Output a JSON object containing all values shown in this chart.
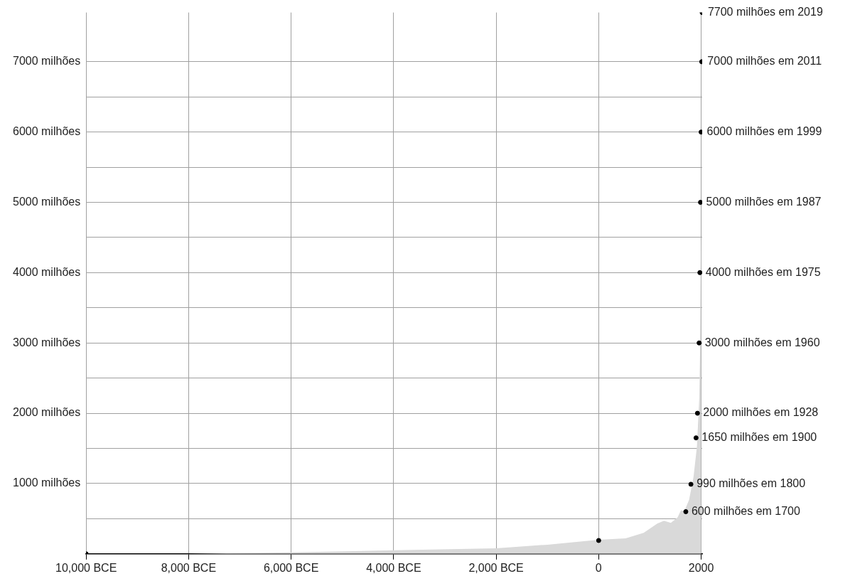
{
  "chart_data": {
    "type": "area",
    "xlim": [
      -10000,
      2020
    ],
    "ylim": [
      0,
      7700
    ],
    "xticks": [
      {
        "value": -10000,
        "label": "10,000 BCE"
      },
      {
        "value": -8000,
        "label": "8,000 BCE"
      },
      {
        "value": -6000,
        "label": "6,000 BCE"
      },
      {
        "value": -4000,
        "label": "4,000 BCE"
      },
      {
        "value": -2000,
        "label": "2,000 BCE"
      },
      0,
      2000
    ],
    "yticks": [
      {
        "value": 0,
        "label": null
      },
      {
        "value": 500,
        "label": null
      },
      {
        "value": 1000,
        "label": "1000 milhões"
      },
      {
        "value": 1500,
        "label": null
      },
      {
        "value": 2000,
        "label": "2000 milhões"
      },
      {
        "value": 2500,
        "label": null
      },
      {
        "value": 3000,
        "label": "3000 milhões"
      },
      {
        "value": 3500,
        "label": null
      },
      {
        "value": 4000,
        "label": "4000 milhões"
      },
      {
        "value": 4500,
        "label": null
      },
      {
        "value": 5000,
        "label": "5000 milhões"
      },
      {
        "value": 5500,
        "label": null
      },
      {
        "value": 6000,
        "label": "6000 milhões"
      },
      {
        "value": 6500,
        "label": null
      },
      {
        "value": 7000,
        "label": "7000 milhões"
      }
    ],
    "grid": true,
    "legend": false,
    "series": [
      {
        "color": "#d9d9d9",
        "x": [
          -10000,
          -8000,
          -7000,
          -6000,
          -4000,
          -2000,
          -1000,
          0,
          526,
          878,
          1143,
          1275,
          1408,
          1540,
          1606,
          1673,
          1765,
          1852,
          1918,
          1962,
          1980,
          1995,
          2000
        ],
        "values": [
          0,
          0,
          10,
          20,
          50,
          80,
          130,
          200,
          220,
          300,
          430,
          470,
          440,
          520,
          620,
          610,
          770,
          1100,
          1530,
          2200,
          3000,
          4500,
          6000
        ]
      },
      {
        "type": "scatter",
        "marker": "circle",
        "color": "#000000",
        "x": [
          -10000,
          0,
          1700,
          1800,
          1900,
          1928,
          1960,
          1975,
          1987,
          1999,
          2011,
          2019
        ],
        "values": [
          0,
          190,
          600,
          990,
          1650,
          2000,
          3000,
          4000,
          5000,
          6000,
          7000,
          7700
        ]
      }
    ],
    "annotations": [
      {
        "text": "600 milhões em 1700",
        "x": 1700,
        "y": 600
      },
      {
        "text": "990 milhões em 1800",
        "x": 1800,
        "y": 990
      },
      {
        "text": "1650 milhões em 1900",
        "x": 1900,
        "y": 1650
      },
      {
        "text": "2000 milhões em 1928",
        "x": 1928,
        "y": 2000
      },
      {
        "text": "3000 milhões em 1960",
        "x": 1960,
        "y": 3000
      },
      {
        "text": "4000 milhões em 1975",
        "x": 1975,
        "y": 4000
      },
      {
        "text": "5000 milhões em 1987",
        "x": 1987,
        "y": 5000
      },
      {
        "text": "6000 milhões em 1999",
        "x": 1999,
        "y": 6000
      },
      {
        "text": "7000 milhões em 2011",
        "x": 2011,
        "y": 7000
      },
      {
        "text": "7700 milhões em 2019",
        "x": 2019,
        "y": 7700
      }
    ]
  }
}
